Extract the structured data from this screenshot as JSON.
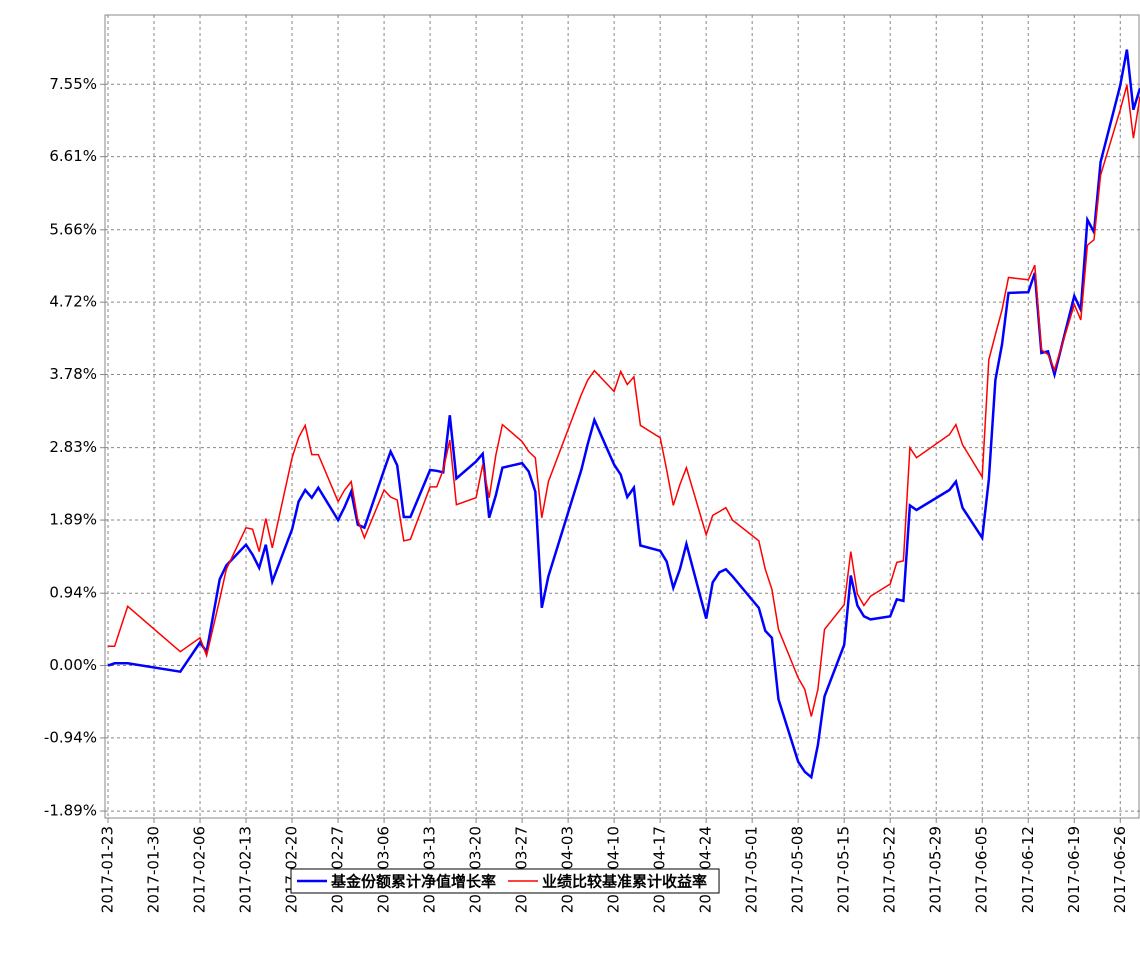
{
  "chart_data": {
    "type": "line",
    "x": [
      "2017-01-23",
      "2017-01-24",
      "2017-01-26",
      "2017-02-03",
      "2017-02-06",
      "2017-02-07",
      "2017-02-09",
      "2017-02-10",
      "2017-02-13",
      "2017-02-14",
      "2017-02-15",
      "2017-02-16",
      "2017-02-17",
      "2017-02-20",
      "2017-02-21",
      "2017-02-22",
      "2017-02-23",
      "2017-02-24",
      "2017-02-27",
      "2017-02-28",
      "2017-03-01",
      "2017-03-02",
      "2017-03-03",
      "2017-03-06",
      "2017-03-07",
      "2017-03-08",
      "2017-03-09",
      "2017-03-10",
      "2017-03-13",
      "2017-03-14",
      "2017-03-15",
      "2017-03-16",
      "2017-03-17",
      "2017-03-20",
      "2017-03-21",
      "2017-03-22",
      "2017-03-23",
      "2017-03-24",
      "2017-03-27",
      "2017-03-28",
      "2017-03-29",
      "2017-03-30",
      "2017-03-31",
      "2017-04-05",
      "2017-04-06",
      "2017-04-07",
      "2017-04-10",
      "2017-04-11",
      "2017-04-12",
      "2017-04-13",
      "2017-04-14",
      "2017-04-17",
      "2017-04-18",
      "2017-04-19",
      "2017-04-20",
      "2017-04-21",
      "2017-04-24",
      "2017-04-25",
      "2017-04-26",
      "2017-04-27",
      "2017-04-28",
      "2017-05-02",
      "2017-05-03",
      "2017-05-04",
      "2017-05-05",
      "2017-05-08",
      "2017-05-09",
      "2017-05-10",
      "2017-05-11",
      "2017-05-12",
      "2017-05-15",
      "2017-05-16",
      "2017-05-17",
      "2017-05-18",
      "2017-05-19",
      "2017-05-22",
      "2017-05-23",
      "2017-05-24",
      "2017-05-25",
      "2017-05-26",
      "2017-05-31",
      "2017-06-01",
      "2017-06-02",
      "2017-06-05",
      "2017-06-06",
      "2017-06-07",
      "2017-06-08",
      "2017-06-09",
      "2017-06-12",
      "2017-06-13",
      "2017-06-14",
      "2017-06-15",
      "2017-06-16",
      "2017-06-19",
      "2017-06-20",
      "2017-06-21",
      "2017-06-22",
      "2017-06-23",
      "2017-06-26",
      "2017-06-27",
      "2017-06-28",
      "2017-06-29"
    ],
    "series": [
      {
        "name": "基金份额累计净值增长率",
        "color": "#0000ff",
        "values": [
          0.0,
          0.03,
          0.03,
          -0.08,
          0.3,
          0.18,
          1.12,
          1.3,
          1.57,
          1.44,
          1.27,
          1.57,
          1.09,
          1.77,
          2.13,
          2.28,
          2.18,
          2.31,
          1.89,
          2.06,
          2.26,
          1.83,
          1.79,
          2.54,
          2.78,
          2.6,
          1.93,
          1.93,
          2.54,
          2.53,
          2.51,
          3.25,
          2.43,
          2.65,
          2.75,
          1.92,
          2.21,
          2.57,
          2.63,
          2.52,
          2.26,
          0.75,
          1.16,
          2.54,
          2.88,
          3.19,
          2.61,
          2.48,
          2.19,
          2.31,
          1.56,
          1.49,
          1.35,
          1.01,
          1.25,
          1.58,
          0.61,
          1.08,
          1.21,
          1.25,
          1.16,
          0.75,
          0.45,
          0.36,
          -0.44,
          -1.25,
          -1.38,
          -1.45,
          -1.03,
          -0.4,
          0.27,
          1.17,
          0.78,
          0.64,
          0.6,
          0.64,
          0.86,
          0.84,
          2.08,
          2.02,
          2.28,
          2.39,
          2.05,
          1.66,
          2.41,
          3.71,
          4.17,
          4.84,
          4.85,
          5.1,
          4.06,
          4.08,
          3.78,
          4.8,
          4.62,
          5.79,
          5.63,
          6.54,
          7.54,
          8.0,
          7.22,
          7.5
        ]
      },
      {
        "name": "业绩比较基准累计收益率",
        "color": "#ff0000",
        "values": [
          0.25,
          0.25,
          0.77,
          0.18,
          0.36,
          0.13,
          0.86,
          1.25,
          1.79,
          1.77,
          1.48,
          1.91,
          1.53,
          2.7,
          2.96,
          3.12,
          2.74,
          2.74,
          2.13,
          2.28,
          2.39,
          1.89,
          1.66,
          2.28,
          2.19,
          2.15,
          1.62,
          1.64,
          2.32,
          2.32,
          2.54,
          2.93,
          2.09,
          2.18,
          2.61,
          2.18,
          2.73,
          3.13,
          2.91,
          2.78,
          2.7,
          1.92,
          2.39,
          3.52,
          3.71,
          3.83,
          3.56,
          3.82,
          3.65,
          3.75,
          3.12,
          2.96,
          2.54,
          2.08,
          2.35,
          2.57,
          1.7,
          1.95,
          2.0,
          2.05,
          1.89,
          1.62,
          1.25,
          0.99,
          0.47,
          -0.16,
          -0.31,
          -0.66,
          -0.31,
          0.47,
          0.79,
          1.48,
          0.93,
          0.78,
          0.9,
          1.06,
          1.34,
          1.36,
          2.83,
          2.7,
          3.0,
          3.13,
          2.87,
          2.45,
          3.97,
          4.3,
          4.62,
          5.04,
          5.01,
          5.2,
          4.1,
          4.04,
          3.84,
          4.69,
          4.49,
          5.46,
          5.53,
          6.37,
          7.22,
          7.54,
          6.85,
          7.39
        ]
      }
    ],
    "xlim": [
      "2017-01-23",
      "2017-06-29"
    ],
    "xticks": [
      "2017-01-23",
      "2017-01-30",
      "2017-02-06",
      "2017-02-13",
      "2017-02-20",
      "2017-02-27",
      "2017-03-06",
      "2017-03-13",
      "2017-03-20",
      "2017-03-27",
      "2017-04-03",
      "2017-04-10",
      "2017-04-17",
      "2017-04-24",
      "2017-05-01",
      "2017-05-08",
      "2017-05-15",
      "2017-05-22",
      "2017-05-29",
      "2017-06-05",
      "2017-06-12",
      "2017-06-19",
      "2017-06-26"
    ],
    "ylim": [
      -1.98,
      8.45
    ],
    "yticks": [
      {
        "value": -1.89,
        "label": "-1.89%"
      },
      {
        "value": -0.94,
        "label": "-0.94%"
      },
      {
        "value": 0,
        "label": "0.00%"
      },
      {
        "value": 0.94,
        "label": "0.94%"
      },
      {
        "value": 1.89,
        "label": "1.89%"
      },
      {
        "value": 2.83,
        "label": "2.83%"
      },
      {
        "value": 3.78,
        "label": "3.78%"
      },
      {
        "value": 4.72,
        "label": "4.72%"
      },
      {
        "value": 5.66,
        "label": "5.66%"
      },
      {
        "value": 6.61,
        "label": "6.61%"
      },
      {
        "value": 7.55,
        "label": "7.55%"
      }
    ],
    "grid": true,
    "legend": "bottom"
  }
}
